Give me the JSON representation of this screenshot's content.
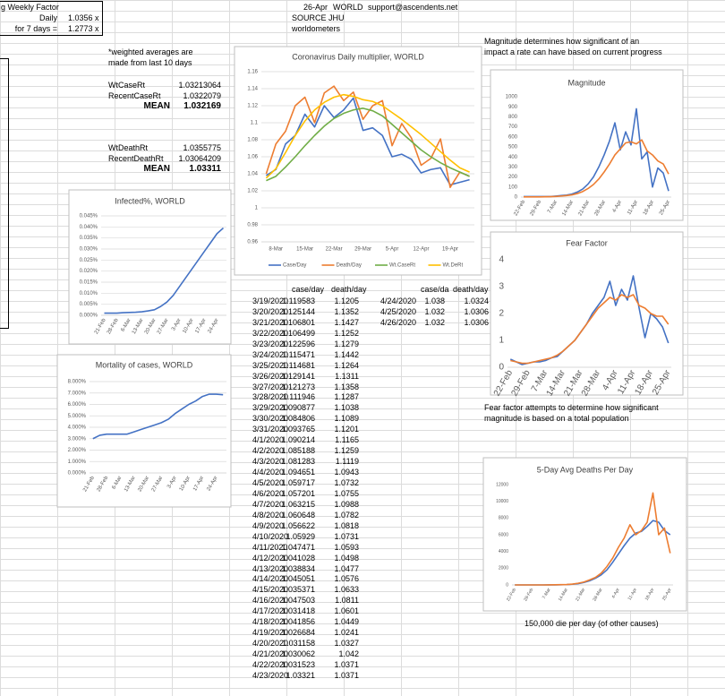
{
  "sheet": {
    "weekly": {
      "title": "g Weekly Factor",
      "rows": [
        [
          "Daily",
          "1.0356",
          "x"
        ],
        [
          "for 7 days =",
          "1.2773",
          "x"
        ]
      ]
    },
    "header": {
      "date": "26-Apr",
      "region": "WORLD",
      "email": "support@ascendents.net",
      "source": "SOURCE JHU",
      "source2": "worldometers"
    },
    "note": [
      "*weighted averages are",
      "made from last 10 days"
    ],
    "case_rates": [
      [
        "WtCaseRt",
        "1.03213064"
      ],
      [
        "RecentCaseRt",
        "1.0322079"
      ],
      [
        "MEAN",
        "1.032169"
      ]
    ],
    "death_rates": [
      [
        "WtDeathRt",
        "1.0355775"
      ],
      [
        "RecentDeathRt",
        "1.03064209"
      ],
      [
        "MEAN",
        "1.03311"
      ]
    ],
    "magnitude_note": [
      "Magnitude determines how significant of an",
      "impact a rate can have based on current progress"
    ],
    "fear_note": [
      "Fear factor attempts to determine how significant",
      "magnitude is based on a total population"
    ],
    "deaths_note": "150,000 die per day (of other causes)",
    "table1": {
      "header": [
        "case/day",
        "death/day"
      ],
      "rows": [
        [
          "3/19/2020",
          "1.119583",
          "1.1205"
        ],
        [
          "3/20/2020",
          "1.125144",
          "1.1352"
        ],
        [
          "3/21/2020",
          "1.106801",
          "1.1427"
        ],
        [
          "3/22/2020",
          "1.106499",
          "1.1252"
        ],
        [
          "3/23/2020",
          "1.122596",
          "1.1279"
        ],
        [
          "3/24/2020",
          "1.115471",
          "1.1442"
        ],
        [
          "3/25/2020",
          "1.114681",
          "1.1264"
        ],
        [
          "3/26/2020",
          "1.129141",
          "1.1311"
        ],
        [
          "3/27/2020",
          "1.121273",
          "1.1358"
        ],
        [
          "3/28/2020",
          "1.111946",
          "1.1287"
        ],
        [
          "3/29/2020",
          "1.090877",
          "1.1038"
        ],
        [
          "3/30/2020",
          "1.084806",
          "1.1089"
        ],
        [
          "3/31/2020",
          "1.093765",
          "1.1201"
        ],
        [
          "4/1/2020",
          "1.090214",
          "1.1165"
        ],
        [
          "4/2/2020",
          "1.085188",
          "1.1259"
        ],
        [
          "4/3/2020",
          "1.081283",
          "1.1119"
        ],
        [
          "4/4/2020",
          "1.094651",
          "1.0943"
        ],
        [
          "4/5/2020",
          "1.059717",
          "1.0732"
        ],
        [
          "4/6/2020",
          "1.057201",
          "1.0755"
        ],
        [
          "4/7/2020",
          "1.063215",
          "1.0988"
        ],
        [
          "4/8/2020",
          "1.060648",
          "1.0782"
        ],
        [
          "4/9/2020",
          "1.056622",
          "1.0818"
        ],
        [
          "4/10/2020",
          "1.05929",
          "1.0731"
        ],
        [
          "4/11/2020",
          "1.047471",
          "1.0593"
        ],
        [
          "4/12/2020",
          "1.041028",
          "1.0498"
        ],
        [
          "4/13/2020",
          "1.038834",
          "1.0477"
        ],
        [
          "4/14/2020",
          "1.045051",
          "1.0576"
        ],
        [
          "4/15/2020",
          "1.035371",
          "1.0633"
        ],
        [
          "4/16/2020",
          "1.047503",
          "1.0811"
        ],
        [
          "4/17/2020",
          "1.031418",
          "1.0601"
        ],
        [
          "4/18/2020",
          "1.041856",
          "1.0449"
        ],
        [
          "4/19/2020",
          "1.026684",
          "1.0241"
        ],
        [
          "4/20/2020",
          "1.031158",
          "1.0327"
        ],
        [
          "4/21/2020",
          "1.030062",
          "1.042"
        ],
        [
          "4/22/2020",
          "1.031523",
          "1.0371"
        ],
        [
          "4/23/2020",
          "1.03321",
          "1.0371"
        ]
      ]
    },
    "table2": {
      "header": [
        "case/da",
        "death/day"
      ],
      "rows": [
        [
          "4/24/2020",
          "1.038",
          "1.0324"
        ],
        [
          "4/25/2020",
          "1.032",
          "1.0306"
        ],
        [
          "4/26/2020",
          "1.032",
          "1.0306"
        ]
      ]
    }
  },
  "chart_data": [
    {
      "type": "line",
      "title": "Coronavirus Daily multiplier, WORLD",
      "categories": [
        null,
        "8-Mar",
        null,
        null,
        "15-Mar",
        null,
        null,
        "22-Mar",
        null,
        null,
        "29-Mar",
        null,
        null,
        "5-Apr",
        null,
        null,
        "12-Apr",
        null,
        null,
        "19-Apr",
        null,
        null
      ],
      "series": [
        {
          "name": "Case/Day",
          "color": "#4472c4",
          "values": [
            1.038,
            1.045,
            1.075,
            1.085,
            1.11,
            1.095,
            1.12,
            1.106,
            1.115,
            1.129,
            1.091,
            1.094,
            1.085,
            1.06,
            1.063,
            1.057,
            1.041,
            1.045,
            1.047,
            1.027,
            1.03,
            1.033
          ]
        },
        {
          "name": "Death/Day",
          "color": "#ed7d31",
          "values": [
            1.04,
            1.075,
            1.09,
            1.12,
            1.13,
            1.1,
            1.135,
            1.143,
            1.126,
            1.136,
            1.104,
            1.12,
            1.126,
            1.073,
            1.099,
            1.082,
            1.05,
            1.058,
            1.081,
            1.024,
            1.042,
            1.037
          ]
        },
        {
          "name": "Wt.CaseRt",
          "color": "#70ad47",
          "values": [
            1.032,
            1.037,
            1.048,
            1.06,
            1.073,
            1.085,
            1.096,
            1.105,
            1.111,
            1.115,
            1.117,
            1.114,
            1.108,
            1.098,
            1.088,
            1.078,
            1.068,
            1.06,
            1.053,
            1.047,
            1.042,
            1.037
          ]
        },
        {
          "name": "Wt.DeRt",
          "color": "#ffc000",
          "values": [
            1.035,
            1.046,
            1.065,
            1.085,
            1.102,
            1.115,
            1.124,
            1.13,
            1.133,
            1.131,
            1.127,
            1.125,
            1.12,
            1.112,
            1.104,
            1.095,
            1.086,
            1.076,
            1.066,
            1.056,
            1.047,
            1.042
          ]
        }
      ],
      "ylim": [
        0.96,
        1.16
      ],
      "yticks": [
        0.96,
        0.98,
        1,
        1.02,
        1.04,
        1.06,
        1.08,
        1.1,
        1.12,
        1.14,
        1.16
      ],
      "grid": true,
      "legend": "bottom"
    },
    {
      "type": "line",
      "title": "Infected%, WORLD",
      "categories": [
        "21-Feb",
        null,
        "28-Feb",
        null,
        "6-Mar",
        null,
        "13-Mar",
        null,
        "20-Mar",
        null,
        "27-Mar",
        null,
        "3-Apr",
        null,
        "10-Apr",
        null,
        "17-Apr",
        null,
        "24-Apr",
        null
      ],
      "series": [
        {
          "color": "#4472c4",
          "values": [
            0.001,
            0.001,
            0.001,
            0.0012,
            0.0013,
            0.0014,
            0.0016,
            0.002,
            0.0025,
            0.004,
            0.006,
            0.009,
            0.013,
            0.017,
            0.021,
            0.025,
            0.029,
            0.033,
            0.037,
            0.0395
          ]
        }
      ],
      "ylim": [
        0,
        0.045
      ],
      "yticks": [
        {
          "value": 0,
          "label": "0.000%"
        },
        {
          "value": 0.005,
          "label": "0.005%"
        },
        {
          "value": 0.01,
          "label": "0.010%"
        },
        {
          "value": 0.015,
          "label": "0.015%"
        },
        {
          "value": 0.02,
          "label": "0.020%"
        },
        {
          "value": 0.025,
          "label": "0.025%"
        },
        {
          "value": 0.03,
          "label": "0.030%"
        },
        {
          "value": 0.035,
          "label": "0.035%"
        },
        {
          "value": 0.04,
          "label": "0.040%"
        },
        {
          "value": 0.045,
          "label": "0.045%"
        }
      ],
      "grid": true
    },
    {
      "type": "line",
      "title": "Mortality of cases, WORLD",
      "categories": [
        "21-Feb",
        null,
        "28-Feb",
        null,
        "6-Mar",
        null,
        "13-Mar",
        null,
        "20-Mar",
        null,
        "27-Mar",
        null,
        "3-Apr",
        null,
        "10-Apr",
        null,
        "17-Apr",
        null,
        "24-Apr",
        null
      ],
      "series": [
        {
          "color": "#4472c4",
          "values": [
            3,
            3.3,
            3.4,
            3.4,
            3.4,
            3.4,
            3.6,
            3.8,
            4,
            4.2,
            4.4,
            4.7,
            5.2,
            5.6,
            6,
            6.3,
            6.7,
            6.9,
            6.9,
            6.85
          ]
        }
      ],
      "ylim": [
        0,
        8
      ],
      "yticks": [
        {
          "value": 0,
          "label": "0.000%"
        },
        {
          "value": 1,
          "label": "1.000%"
        },
        {
          "value": 2,
          "label": "2.000%"
        },
        {
          "value": 3,
          "label": "3.000%"
        },
        {
          "value": 4,
          "label": "4.000%"
        },
        {
          "value": 5,
          "label": "5.000%"
        },
        {
          "value": 6,
          "label": "6.000%"
        },
        {
          "value": 7,
          "label": "7.000%"
        },
        {
          "value": 8,
          "label": "8.000%"
        }
      ],
      "grid": true
    },
    {
      "type": "line",
      "title": "Magnitude",
      "categories": [
        "22-Feb",
        null,
        null,
        "29-Feb",
        null,
        null,
        "7-Mar",
        null,
        null,
        "14-Mar",
        null,
        null,
        "21-Mar",
        null,
        null,
        "28-Mar",
        null,
        null,
        "4-Apr",
        null,
        null,
        "11-Apr",
        null,
        null,
        "18-Apr",
        null,
        null,
        "25-Apr"
      ],
      "series": [
        {
          "color": "#4472c4",
          "values": [
            5,
            5,
            5,
            5,
            5,
            5,
            10,
            15,
            20,
            30,
            50,
            80,
            130,
            200,
            300,
            420,
            560,
            740,
            470,
            650,
            520,
            880,
            380,
            450,
            100,
            290,
            240,
            60
          ]
        },
        {
          "color": "#ed7d31",
          "values": [
            2,
            2,
            2,
            2,
            3,
            4,
            6,
            10,
            15,
            22,
            35,
            55,
            85,
            125,
            180,
            250,
            330,
            420,
            480,
            540,
            550,
            530,
            570,
            460,
            420,
            360,
            330,
            230
          ]
        }
      ],
      "ylim": [
        0,
        1000
      ],
      "yticks": [
        0,
        100,
        200,
        300,
        400,
        500,
        600,
        700,
        800,
        900,
        1000
      ],
      "grid": false
    },
    {
      "type": "line",
      "title": "Fear Factor",
      "categories": [
        "22-Feb",
        null,
        null,
        "29-Feb",
        null,
        null,
        "7-Mar",
        null,
        null,
        "14-Mar",
        null,
        null,
        "21-Mar",
        null,
        null,
        "28-Mar",
        null,
        null,
        "4-Apr",
        null,
        null,
        "11-Apr",
        null,
        null,
        "18-Apr",
        null,
        null,
        "25-Apr"
      ],
      "series": [
        {
          "color": "#4472c4",
          "values": [
            0.3,
            0.2,
            0.1,
            0.15,
            0.2,
            0.2,
            0.25,
            0.35,
            0.4,
            0.6,
            0.8,
            1,
            1.3,
            1.6,
            2,
            2.3,
            2.6,
            3.2,
            2.3,
            2.9,
            2.5,
            3.4,
            2.2,
            1.1,
            2,
            1.8,
            1.5,
            0.9
          ]
        },
        {
          "color": "#ed7d31",
          "values": [
            0.25,
            0.2,
            0.15,
            0.15,
            0.2,
            0.25,
            0.3,
            0.35,
            0.45,
            0.6,
            0.8,
            1,
            1.3,
            1.6,
            1.9,
            2.2,
            2.4,
            2.6,
            2.5,
            2.7,
            2.6,
            2.7,
            2.3,
            2.2,
            2,
            1.9,
            1.9,
            1.6
          ]
        }
      ],
      "ylim": [
        0,
        4
      ],
      "yticks": [
        0,
        1,
        2,
        3,
        4
      ],
      "grid": false
    },
    {
      "type": "line",
      "title": "5-Day Avg Deaths Per Day",
      "categories": [
        "22-Feb",
        null,
        null,
        "29-Feb",
        null,
        null,
        "7-Mar",
        null,
        null,
        "14-Mar",
        null,
        null,
        "21-Mar",
        null,
        null,
        "28-Mar",
        null,
        null,
        "4-Apr",
        null,
        null,
        "11-Apr",
        null,
        null,
        "18-Apr",
        null,
        null,
        "25-Apr"
      ],
      "series": [
        {
          "color": "#4472c4",
          "values": [
            0,
            0,
            0,
            0,
            0,
            0,
            5,
            10,
            20,
            40,
            80,
            150,
            300,
            500,
            800,
            1200,
            1800,
            2700,
            3700,
            4700,
            5600,
            6200,
            6400,
            7000,
            7700,
            7500,
            6500,
            6000
          ]
        },
        {
          "color": "#ed7d31",
          "values": [
            0,
            0,
            0,
            0,
            0,
            0,
            5,
            15,
            30,
            50,
            100,
            200,
            350,
            600,
            900,
            1400,
            2200,
            3200,
            4500,
            5600,
            7200,
            6000,
            6500,
            7500,
            11000,
            6000,
            6800,
            3800
          ]
        }
      ],
      "ylim": [
        0,
        12000
      ],
      "yticks": [
        0,
        2000,
        4000,
        6000,
        8000,
        10000,
        12000
      ],
      "grid": false
    }
  ]
}
